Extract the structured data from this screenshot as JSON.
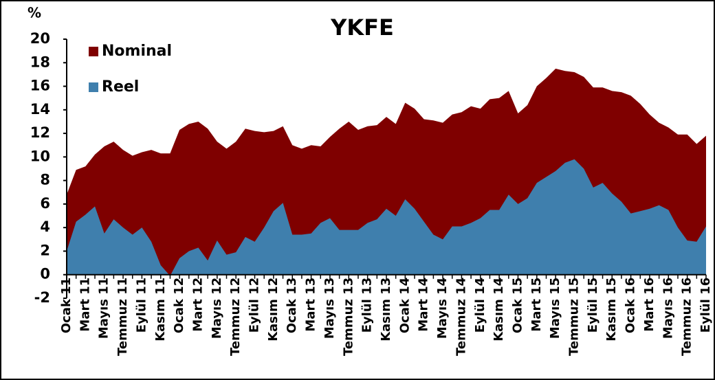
{
  "chart_data": {
    "type": "area",
    "title": "YKFE",
    "y_label": "%",
    "categories": [
      "Ocak 11",
      null,
      "Mart 11",
      null,
      "Mayıs 11",
      null,
      "Temmuz 11",
      null,
      "Eylül 11",
      null,
      "Kasım 11",
      null,
      "Ocak 12",
      null,
      "Mart 12",
      null,
      "Mayıs 12",
      null,
      "Temmuz 12",
      null,
      "Eylül 12",
      null,
      "Kasım 12",
      null,
      "Ocak 13",
      null,
      "Mart 13",
      null,
      "Mayıs 13",
      null,
      "Temmuz 13",
      null,
      "Eylül 13",
      null,
      "Kasım 13",
      null,
      "Ocak 14",
      null,
      "Mart 14",
      null,
      "Mayıs 14",
      null,
      "Temmuz 14",
      null,
      "Eylül 14",
      null,
      "Kasım 14",
      null,
      "Ocak 15",
      null,
      "Mart 15",
      null,
      "Mayıs 15",
      null,
      "Temmuz 15",
      null,
      "Eylül 15",
      null,
      "Kasım 15",
      null,
      "Ocak 16",
      null,
      "Mart 16",
      null,
      "Mayıs 16",
      null,
      "Temmuz 16",
      null,
      "Eylül 16"
    ],
    "series": [
      {
        "name": "Nominal",
        "color": "#7f0000",
        "values": [
          6.8,
          8.9,
          9.2,
          10.2,
          10.9,
          11.3,
          10.6,
          10.1,
          10.4,
          10.6,
          10.3,
          10.3,
          12.3,
          12.8,
          13.0,
          12.4,
          11.3,
          10.7,
          11.3,
          12.4,
          12.2,
          12.1,
          12.2,
          12.6,
          11.0,
          10.7,
          11.0,
          10.9,
          11.7,
          12.4,
          13.0,
          12.3,
          12.6,
          12.7,
          13.4,
          12.8,
          14.6,
          14.1,
          13.2,
          13.1,
          12.9,
          13.6,
          13.8,
          14.3,
          14.1,
          14.9,
          15.0,
          15.6,
          13.7,
          14.4,
          16.0,
          16.7,
          17.5,
          17.3,
          17.2,
          16.8,
          15.9,
          15.9,
          15.6,
          15.5,
          15.2,
          14.5,
          13.6,
          12.9,
          12.5,
          11.9,
          11.9,
          11.1,
          11.8
        ]
      },
      {
        "name": "Reel",
        "color": "#3f7fad",
        "values": [
          2.0,
          4.5,
          5.1,
          5.8,
          3.5,
          4.7,
          4.0,
          3.4,
          4.0,
          2.8,
          0.8,
          -0.1,
          1.4,
          2.0,
          2.3,
          1.2,
          2.9,
          1.7,
          1.9,
          3.2,
          2.8,
          4.0,
          5.4,
          6.1,
          3.4,
          3.4,
          3.5,
          4.4,
          4.8,
          3.8,
          3.8,
          3.8,
          4.4,
          4.7,
          5.6,
          5.0,
          6.4,
          5.6,
          4.5,
          3.4,
          3.0,
          4.1,
          4.1,
          4.4,
          4.8,
          5.5,
          5.5,
          6.8,
          6.0,
          6.5,
          7.8,
          8.3,
          8.8,
          9.5,
          9.8,
          9.0,
          7.4,
          7.8,
          6.9,
          6.2,
          5.2,
          5.4,
          5.6,
          5.9,
          5.5,
          4.0,
          2.9,
          2.8,
          4.1
        ]
      }
    ],
    "ylim": [
      -2,
      20
    ],
    "yticks": [
      -2,
      0,
      2,
      4,
      6,
      8,
      10,
      12,
      14,
      16,
      18,
      20
    ],
    "legend": "upper-left"
  }
}
